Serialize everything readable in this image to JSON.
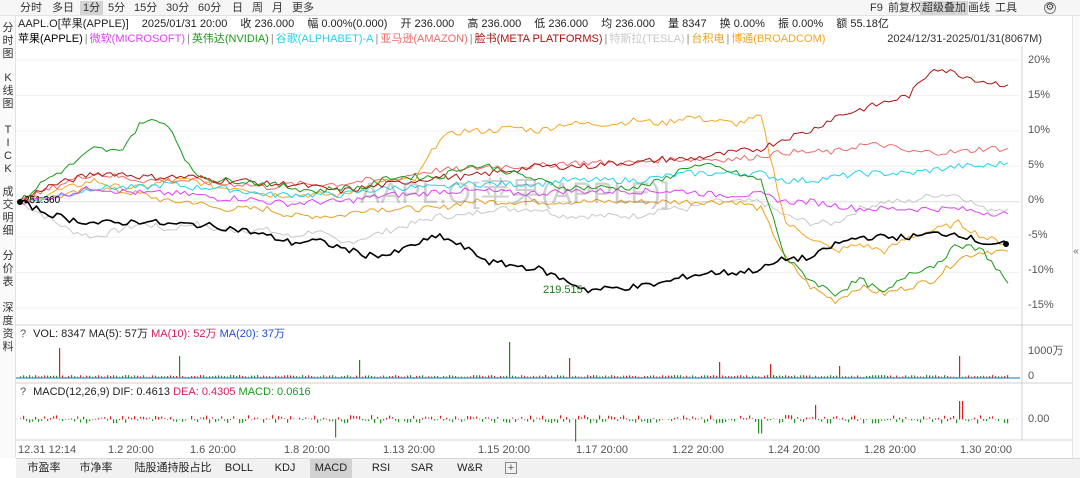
{
  "toolbar": {
    "tabs": [
      "分时",
      "多日",
      "1分",
      "5分",
      "15分",
      "30分",
      "60分",
      "日",
      "周",
      "月",
      "更多"
    ],
    "active_tab": "1分",
    "right": [
      "F9",
      "前复权",
      "超级叠加",
      "画线",
      "工具"
    ],
    "active_right": "超级叠加"
  },
  "info": {
    "symbol": "AAPL.O[苹果(APPLE)]",
    "datetime": "2025/01/31 20:00",
    "close": "收 236.000",
    "change": "幅 0.00%(0.000)",
    "open": "开 236.000",
    "high": "高 236.000",
    "low": "低 236.000",
    "avg": "均 236.000",
    "volume": "量 8347",
    "turnover": "换 0.00%",
    "amplitude": "振 0.00%",
    "amount": "额 55.18亿"
  },
  "legend": [
    {
      "label": "苹果(APPLE)",
      "color": "#000000"
    },
    {
      "label": "微软(MICROSOFT)",
      "color": "#e040fb"
    },
    {
      "label": "英伟达(NVIDIA)",
      "color": "#1a9a1a"
    },
    {
      "label": "谷歌(ALPHABET)-A",
      "color": "#22d3ee"
    },
    {
      "label": "亚马逊(AMAZON)",
      "color": "#f06a6a"
    },
    {
      "label": "脸书(META PLATFORMS)",
      "color": "#b01010"
    },
    {
      "label": "特斯拉(TESLA)",
      "color": "#c8c8c8"
    },
    {
      "label": "台积电",
      "color": "#e8a020"
    },
    {
      "label": "博通(BROADCOM)",
      "color": "#f5a623"
    }
  ],
  "date_range": "2024/12/31-2025/01/31(8067M)",
  "left_tabs": [
    "分时图",
    "K线图",
    "TICK",
    "成交明细",
    "分价表",
    "深度资料"
  ],
  "watermark": "AAPL.O[苹果(APPLE)]",
  "price_labels": {
    "start": "251.360",
    "low": "219.515"
  },
  "y_axis": [
    "20%",
    "15%",
    "10%",
    "5%",
    "0%",
    "-5%",
    "-10%",
    "-15%"
  ],
  "volume": {
    "help": "?",
    "vol": "VOL: 8347",
    "ma5": "MA(5): 57万",
    "ma10": "MA(10): 52万",
    "ma20": "MA(20): 37万",
    "axis_top": "1000万",
    "axis_zero": "0"
  },
  "macd": {
    "help": "?",
    "name": "MACD(12,26,9)",
    "dif": "DIF: 0.4613",
    "dea": "DEA: 0.4305",
    "macd": "MACD: 0.0616",
    "axis": "0.00"
  },
  "x_axis": [
    "12.31 12:14",
    "1.2 20:00",
    "1.6 20:00",
    "1.8 20:00",
    "1.13 20:00",
    "1.15 20:00",
    "1.17 20:00",
    "1.22 20:00",
    "1.24 20:00",
    "1.28 20:00",
    "1.30 20:00"
  ],
  "bottom_tabs": [
    "市盈率",
    "市净率",
    "陆股通持股占比",
    "BOLL",
    "KDJ",
    "MACD",
    "RSI",
    "SAR",
    "W&R"
  ],
  "active_bottom": "MACD",
  "add_icon": "plus-box-icon",
  "collapse_icon": "chevron-left-icon",
  "chart_data": {
    "type": "line",
    "y_unit": "%",
    "ylim": [
      -15,
      20
    ],
    "x": [
      0,
      1,
      2,
      3,
      4,
      5,
      6,
      7,
      8,
      9,
      10,
      11,
      12,
      13,
      14,
      15,
      16,
      17,
      18,
      19,
      20,
      21,
      22,
      23,
      24,
      25,
      26,
      27,
      28,
      29,
      30,
      31,
      32,
      33,
      34,
      35,
      36,
      37,
      38,
      39,
      40
    ],
    "series": [
      {
        "name": "苹果(APPLE)",
        "color": "#000000",
        "values": [
          0,
          -1.5,
          -2.5,
          -3,
          -3,
          -2.7,
          -3.2,
          -3.2,
          -3.5,
          -4,
          -4.8,
          -5.8,
          -5.5,
          -6.5,
          -7.5,
          -7.5,
          -6,
          -4.8,
          -6.5,
          -8.5,
          -9,
          -9.5,
          -11,
          -12.5,
          -12.2,
          -12,
          -11.5,
          -10.5,
          -10,
          -10,
          -9.5,
          -8,
          -8,
          -6,
          -5,
          -5,
          -5,
          -4.5,
          -4.5,
          -5.8,
          -6
        ]
      },
      {
        "name": "微软(MICROSOFT)",
        "color": "#e040fb",
        "values": [
          0,
          0.5,
          1.2,
          2,
          1.5,
          1.2,
          1.2,
          1,
          0.5,
          0.5,
          0,
          -0.3,
          0,
          0,
          0.5,
          1,
          1,
          1.5,
          1.5,
          1.5,
          1.2,
          1.2,
          1.5,
          1.5,
          1.5,
          1.5,
          1.5,
          1.5,
          1,
          1,
          1,
          0,
          0,
          -0.5,
          -1,
          -1,
          -1,
          -1,
          -1,
          -1.5,
          -1.7
        ]
      },
      {
        "name": "英伟达(NVIDIA)",
        "color": "#1a9a1a",
        "values": [
          0,
          3,
          5,
          7.5,
          7,
          11.5,
          11,
          4,
          3,
          3,
          2.5,
          2,
          1.5,
          2,
          2,
          3.5,
          3.5,
          3.5,
          5,
          5,
          4,
          3,
          2,
          2,
          2,
          2,
          3,
          5,
          5,
          4,
          3,
          -8,
          -11,
          -13,
          -11,
          -13,
          -10,
          -9,
          -6,
          -7,
          -11.5
        ]
      },
      {
        "name": "谷歌(ALPHABET)-A",
        "color": "#22d3ee",
        "values": [
          0,
          0.5,
          1,
          2,
          2,
          2,
          2.5,
          2,
          2,
          1.5,
          1,
          1,
          1,
          1,
          1.5,
          2,
          2,
          2,
          2.5,
          2.5,
          2.5,
          2.5,
          3,
          3,
          3,
          3,
          3.5,
          4,
          4,
          4,
          4,
          3,
          3,
          3.5,
          4,
          4,
          4,
          4.5,
          5,
          5,
          5.5
        ]
      },
      {
        "name": "亚马逊(AMAZON)",
        "color": "#f06a6a",
        "values": [
          0,
          1.5,
          3,
          4,
          3.5,
          3,
          3,
          3,
          2.5,
          2.5,
          2,
          2.5,
          2.5,
          2.5,
          3,
          3,
          4,
          4.5,
          4.5,
          5,
          5,
          5,
          5.5,
          5.5,
          5.5,
          5.5,
          6,
          6,
          6,
          6,
          6.5,
          7,
          7,
          7,
          8,
          8,
          7,
          7,
          7,
          7.5,
          7.5
        ]
      },
      {
        "name": "脸书(META PLATFORMS)",
        "color": "#b01010",
        "values": [
          0,
          2,
          3,
          4,
          4,
          3.5,
          3.5,
          3.5,
          3,
          3,
          2.5,
          2.5,
          2,
          1.5,
          2,
          2.5,
          3,
          3.5,
          3.5,
          4,
          4.5,
          5,
          5,
          5,
          5.5,
          5.5,
          6,
          6,
          6.5,
          7,
          7.5,
          9,
          10,
          12,
          13,
          14,
          15,
          19,
          18,
          17,
          16.5
        ]
      },
      {
        "name": "特斯拉(TESLA)",
        "color": "#c8c8c8",
        "values": [
          0,
          -2,
          -4,
          -5,
          -4,
          -3,
          -4,
          -3,
          -4,
          -4,
          -4,
          -5,
          -4,
          -6,
          -5,
          -4,
          -3,
          -2,
          -2,
          -1,
          -1,
          -1,
          -2,
          -2,
          -2,
          -2,
          -1,
          -1,
          0,
          0,
          0,
          -2,
          -3,
          -3,
          -1,
          0,
          0,
          1,
          1,
          -1,
          -1
        ]
      },
      {
        "name": "台积电",
        "color": "#e8a020",
        "values": [
          0,
          0.5,
          1,
          2,
          1.5,
          1,
          0,
          0,
          -1,
          -1,
          -1,
          -2,
          -2,
          -2,
          -1,
          -1,
          -1,
          -1,
          0,
          0,
          0,
          0,
          0,
          0,
          0,
          0,
          0,
          0,
          0,
          0,
          -1,
          -8,
          -12,
          -14,
          -12,
          -13,
          -12,
          -11,
          -8,
          -7,
          -7
        ]
      },
      {
        "name": "博通(BROADCOM)",
        "color": "#f5a623",
        "values": [
          0,
          1,
          2,
          3,
          2,
          2,
          3,
          3,
          2,
          2,
          1,
          1,
          1,
          1,
          2,
          3,
          3,
          9,
          10,
          10,
          10.5,
          10,
          11,
          11,
          11,
          11.5,
          11,
          12,
          11.5,
          11,
          12,
          -3,
          -5,
          -7,
          -6,
          -7,
          -5,
          -4,
          -3,
          -5,
          -6
        ]
      }
    ]
  }
}
